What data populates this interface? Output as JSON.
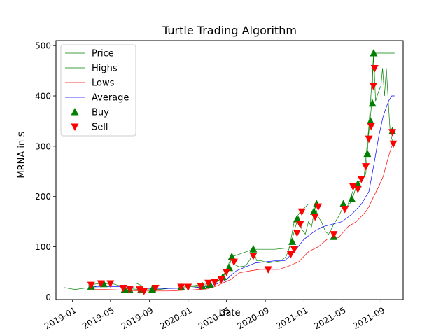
{
  "chart_data": {
    "type": "line",
    "title": "Turtle Trading Algorithm",
    "xlabel": "Date",
    "ylabel": "MRNA in $",
    "xlim": [
      "2018-11-10",
      "2021-11-10"
    ],
    "ylim": [
      -5,
      510
    ],
    "x_ticks": [
      "2019-01",
      "2019-05",
      "2019-09",
      "2020-01",
      "2020-05",
      "2020-09",
      "2021-01",
      "2021-05",
      "2021-09"
    ],
    "y_ticks": [
      0,
      100,
      200,
      300,
      400,
      500
    ],
    "grid": false,
    "legend_position": "top-left",
    "series": [
      {
        "name": "Price",
        "color": "#008000",
        "points": [
          [
            "2018-12-07",
            19
          ],
          [
            "2018-12-20",
            17
          ],
          [
            "2019-01-10",
            15
          ],
          [
            "2019-02-01",
            17
          ],
          [
            "2019-03-01",
            19
          ],
          [
            "2019-04-01",
            24
          ],
          [
            "2019-04-20",
            27
          ],
          [
            "2019-05-10",
            26
          ],
          [
            "2019-06-01",
            22
          ],
          [
            "2019-06-20",
            17
          ],
          [
            "2019-07-10",
            16
          ],
          [
            "2019-08-01",
            15
          ],
          [
            "2019-08-20",
            14
          ],
          [
            "2019-09-10",
            15
          ],
          [
            "2019-10-01",
            15
          ],
          [
            "2019-11-01",
            17
          ],
          [
            "2019-12-01",
            18
          ],
          [
            "2019-12-20",
            20
          ],
          [
            "2020-01-10",
            21
          ],
          [
            "2020-02-01",
            20
          ],
          [
            "2020-02-20",
            22
          ],
          [
            "2020-03-10",
            26
          ],
          [
            "2020-03-25",
            29
          ],
          [
            "2020-04-10",
            35
          ],
          [
            "2020-04-25",
            45
          ],
          [
            "2020-05-10",
            60
          ],
          [
            "2020-05-18",
            80
          ],
          [
            "2020-05-25",
            65
          ],
          [
            "2020-06-10",
            60
          ],
          [
            "2020-07-01",
            62
          ],
          [
            "2020-07-15",
            75
          ],
          [
            "2020-07-25",
            93
          ],
          [
            "2020-08-05",
            72
          ],
          [
            "2020-08-20",
            72
          ],
          [
            "2020-09-10",
            68
          ],
          [
            "2020-10-01",
            70
          ],
          [
            "2020-10-20",
            72
          ],
          [
            "2020-11-05",
            80
          ],
          [
            "2020-11-16",
            98
          ],
          [
            "2020-11-25",
            115
          ],
          [
            "2020-12-05",
            140
          ],
          [
            "2020-12-15",
            160
          ],
          [
            "2020-12-25",
            135
          ],
          [
            "2021-01-05",
            125
          ],
          [
            "2021-01-15",
            150
          ],
          [
            "2021-01-25",
            140
          ],
          [
            "2021-02-05",
            180
          ],
          [
            "2021-02-15",
            160
          ],
          [
            "2021-02-25",
            150
          ],
          [
            "2021-03-10",
            130
          ],
          [
            "2021-03-20",
            125
          ],
          [
            "2021-04-05",
            145
          ],
          [
            "2021-04-20",
            160
          ],
          [
            "2021-05-01",
            175
          ],
          [
            "2021-05-15",
            180
          ],
          [
            "2021-05-25",
            185
          ],
          [
            "2021-06-05",
            200
          ],
          [
            "2021-06-15",
            220
          ],
          [
            "2021-06-25",
            230
          ],
          [
            "2021-07-05",
            235
          ],
          [
            "2021-07-15",
            245
          ],
          [
            "2021-07-25",
            330
          ],
          [
            "2021-08-02",
            380
          ],
          [
            "2021-08-09",
            480
          ],
          [
            "2021-08-15",
            390
          ],
          [
            "2021-08-25",
            410
          ],
          [
            "2021-09-01",
            420
          ],
          [
            "2021-09-06",
            455
          ],
          [
            "2021-09-12",
            400
          ],
          [
            "2021-09-18",
            455
          ],
          [
            "2021-09-24",
            390
          ],
          [
            "2021-09-30",
            330
          ],
          [
            "2021-10-07",
            310
          ],
          [
            "2021-10-14",
            305
          ]
        ]
      },
      {
        "name": "Highs",
        "color": "#008000",
        "points": [
          [
            "2019-02-20",
            24
          ],
          [
            "2019-04-10",
            28
          ],
          [
            "2019-06-01",
            28
          ],
          [
            "2019-07-20",
            28
          ],
          [
            "2019-08-10",
            22
          ],
          [
            "2019-10-20",
            22
          ],
          [
            "2020-01-10",
            22
          ],
          [
            "2020-03-01",
            26
          ],
          [
            "2020-04-01",
            30
          ],
          [
            "2020-04-20",
            40
          ],
          [
            "2020-05-18",
            80
          ],
          [
            "2020-07-25",
            95
          ],
          [
            "2020-10-01",
            95
          ],
          [
            "2020-11-16",
            98
          ],
          [
            "2020-12-01",
            150
          ],
          [
            "2020-12-20",
            170
          ],
          [
            "2021-01-15",
            185
          ],
          [
            "2021-05-20",
            185
          ],
          [
            "2021-06-10",
            220
          ],
          [
            "2021-07-10",
            240
          ],
          [
            "2021-07-25",
            340
          ],
          [
            "2021-08-09",
            485
          ],
          [
            "2021-10-14",
            485
          ]
        ]
      },
      {
        "name": "Lows",
        "color": "#ff0000",
        "points": [
          [
            "2019-02-20",
            16
          ],
          [
            "2019-06-01",
            14
          ],
          [
            "2019-08-10",
            12
          ],
          [
            "2019-11-01",
            12
          ],
          [
            "2020-01-10",
            14
          ],
          [
            "2020-03-01",
            16
          ],
          [
            "2020-04-01",
            22
          ],
          [
            "2020-04-20",
            28
          ],
          [
            "2020-05-15",
            35
          ],
          [
            "2020-06-10",
            48
          ],
          [
            "2020-07-15",
            52
          ],
          [
            "2020-08-15",
            55
          ],
          [
            "2020-10-15",
            55
          ],
          [
            "2020-11-15",
            62
          ],
          [
            "2020-12-15",
            70
          ],
          [
            "2021-01-15",
            90
          ],
          [
            "2021-02-15",
            100
          ],
          [
            "2021-03-15",
            115
          ],
          [
            "2021-04-20",
            118
          ],
          [
            "2021-05-20",
            140
          ],
          [
            "2021-06-15",
            150
          ],
          [
            "2021-07-15",
            170
          ],
          [
            "2021-07-25",
            180
          ],
          [
            "2021-08-09",
            200
          ],
          [
            "2021-08-25",
            220
          ],
          [
            "2021-09-08",
            240
          ],
          [
            "2021-09-25",
            280
          ],
          [
            "2021-10-05",
            300
          ],
          [
            "2021-10-14",
            305
          ]
        ]
      },
      {
        "name": "Average",
        "color": "#0000ff",
        "points": [
          [
            "2019-02-20",
            20
          ],
          [
            "2019-06-01",
            21
          ],
          [
            "2019-08-10",
            17
          ],
          [
            "2019-11-01",
            17
          ],
          [
            "2020-01-10",
            18
          ],
          [
            "2020-03-01",
            21
          ],
          [
            "2020-04-01",
            26
          ],
          [
            "2020-05-01",
            35
          ],
          [
            "2020-06-01",
            52
          ],
          [
            "2020-07-01",
            60
          ],
          [
            "2020-08-01",
            68
          ],
          [
            "2020-09-01",
            70
          ],
          [
            "2020-10-01",
            72
          ],
          [
            "2020-11-01",
            72
          ],
          [
            "2020-12-01",
            90
          ],
          [
            "2021-01-01",
            115
          ],
          [
            "2021-02-01",
            130
          ],
          [
            "2021-03-01",
            140
          ],
          [
            "2021-04-01",
            145
          ],
          [
            "2021-05-01",
            150
          ],
          [
            "2021-06-01",
            165
          ],
          [
            "2021-07-01",
            185
          ],
          [
            "2021-07-25",
            210
          ],
          [
            "2021-08-10",
            265
          ],
          [
            "2021-08-25",
            320
          ],
          [
            "2021-09-08",
            360
          ],
          [
            "2021-09-25",
            390
          ],
          [
            "2021-10-05",
            400
          ],
          [
            "2021-10-14",
            400
          ]
        ]
      }
    ],
    "markers": [
      {
        "name": "Buy",
        "color": "#007f00",
        "shape": "triangle-up",
        "points": [
          [
            "2019-03-01",
            21
          ],
          [
            "2019-04-10",
            26
          ],
          [
            "2019-06-15",
            15
          ],
          [
            "2019-07-01",
            14
          ],
          [
            "2019-08-05",
            14
          ],
          [
            "2019-09-10",
            15
          ],
          [
            "2019-12-10",
            20
          ],
          [
            "2020-02-15",
            22
          ],
          [
            "2020-03-10",
            25
          ],
          [
            "2020-04-20",
            40
          ],
          [
            "2020-05-10",
            58
          ],
          [
            "2020-05-18",
            80
          ],
          [
            "2020-07-25",
            95
          ],
          [
            "2020-11-25",
            110
          ],
          [
            "2020-12-10",
            155
          ],
          [
            "2021-02-01",
            170
          ],
          [
            "2021-02-10",
            185
          ],
          [
            "2021-04-05",
            120
          ],
          [
            "2021-05-05",
            185
          ],
          [
            "2021-06-01",
            195
          ],
          [
            "2021-06-20",
            225
          ],
          [
            "2021-07-20",
            285
          ],
          [
            "2021-07-30",
            350
          ],
          [
            "2021-08-05",
            385
          ],
          [
            "2021-08-09",
            485
          ],
          [
            "2021-10-07",
            330
          ]
        ]
      },
      {
        "name": "Sell",
        "color": "#ff0000",
        "shape": "triangle-down",
        "points": [
          [
            "2019-03-01",
            24
          ],
          [
            "2019-04-01",
            27
          ],
          [
            "2019-05-01",
            27
          ],
          [
            "2019-06-10",
            18
          ],
          [
            "2019-07-01",
            16
          ],
          [
            "2019-08-01",
            15
          ],
          [
            "2019-08-15",
            12
          ],
          [
            "2019-09-20",
            18
          ],
          [
            "2019-12-10",
            20
          ],
          [
            "2020-01-01",
            20
          ],
          [
            "2020-02-10",
            22
          ],
          [
            "2020-03-05",
            28
          ],
          [
            "2020-03-25",
            30
          ],
          [
            "2020-04-15",
            35
          ],
          [
            "2020-05-01",
            50
          ],
          [
            "2020-05-25",
            70
          ],
          [
            "2020-07-25",
            82
          ],
          [
            "2020-09-10",
            55
          ],
          [
            "2020-11-20",
            85
          ],
          [
            "2020-12-01",
            95
          ],
          [
            "2020-12-10",
            128
          ],
          [
            "2020-12-20",
            145
          ],
          [
            "2020-12-25",
            170
          ],
          [
            "2021-02-05",
            160
          ],
          [
            "2021-02-15",
            180
          ],
          [
            "2021-04-05",
            125
          ],
          [
            "2021-05-10",
            175
          ],
          [
            "2021-06-05",
            220
          ],
          [
            "2021-06-20",
            215
          ],
          [
            "2021-07-01",
            235
          ],
          [
            "2021-07-15",
            260
          ],
          [
            "2021-07-25",
            315
          ],
          [
            "2021-08-01",
            340
          ],
          [
            "2021-08-08",
            420
          ],
          [
            "2021-08-12",
            455
          ],
          [
            "2021-10-07",
            328
          ],
          [
            "2021-10-10",
            305
          ]
        ]
      }
    ]
  }
}
